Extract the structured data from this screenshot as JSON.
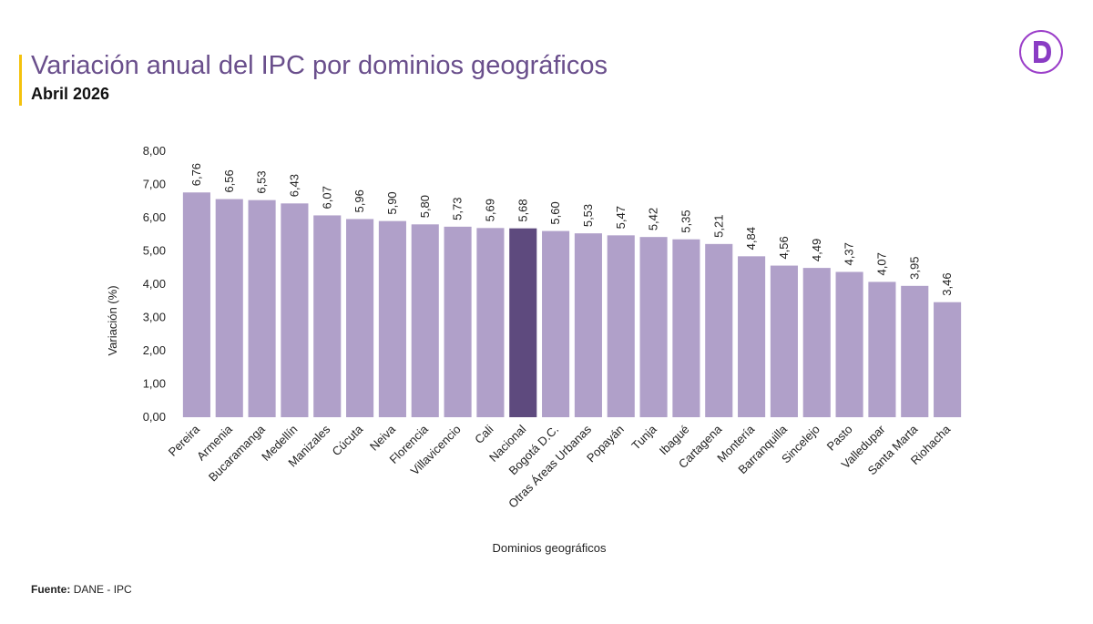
{
  "header": {
    "title": "Variación anual del IPC por dominios geográficos",
    "subtitle": "Abril 2026"
  },
  "footer": {
    "source_label": "Fuente:",
    "source_value": "DANE - IPC"
  },
  "logo": {
    "icon": "dane-d-logo-icon",
    "accent_color": "#9b3fc9"
  },
  "colors": {
    "bar": "#b0a0c9",
    "highlight_bar": "#5e4a7e",
    "accent": "#f4c20d",
    "title": "#6a4f8c"
  },
  "chart_data": {
    "type": "bar",
    "xlabel": "Dominios geográficos",
    "ylabel": "Variación (%)",
    "ylim": [
      0,
      8
    ],
    "yticks": [
      "0,00",
      "1,00",
      "2,00",
      "3,00",
      "4,00",
      "5,00",
      "6,00",
      "7,00",
      "8,00"
    ],
    "grid": false,
    "highlight_category": "Nacional",
    "categories": [
      "Pereira",
      "Armenia",
      "Bucaramanga",
      "Medellín",
      "Manizales",
      "Cúcuta",
      "Neiva",
      "Florencia",
      "Villavicencio",
      "Cali",
      "Nacional",
      "Bogotá D.C.",
      "Otras Áreas Urbanas",
      "Popayán",
      "Tunja",
      "Ibagué",
      "Cartagena",
      "Montería",
      "Barranquilla",
      "Sincelejo",
      "Pasto",
      "Valledupar",
      "Santa Marta",
      "Riohacha"
    ],
    "values": [
      6.76,
      6.56,
      6.53,
      6.43,
      6.07,
      5.96,
      5.9,
      5.8,
      5.73,
      5.69,
      5.68,
      5.6,
      5.53,
      5.47,
      5.42,
      5.35,
      5.21,
      4.84,
      4.56,
      4.49,
      4.37,
      4.07,
      3.95,
      3.46
    ],
    "value_labels": [
      "6,76",
      "6,56",
      "6,53",
      "6,43",
      "6,07",
      "5,96",
      "5,90",
      "5,80",
      "5,73",
      "5,69",
      "5,68",
      "5,60",
      "5,53",
      "5,47",
      "5,42",
      "5,35",
      "5,21",
      "4,84",
      "4,56",
      "4,49",
      "4,37",
      "4,07",
      "3,95",
      "3,46"
    ]
  }
}
